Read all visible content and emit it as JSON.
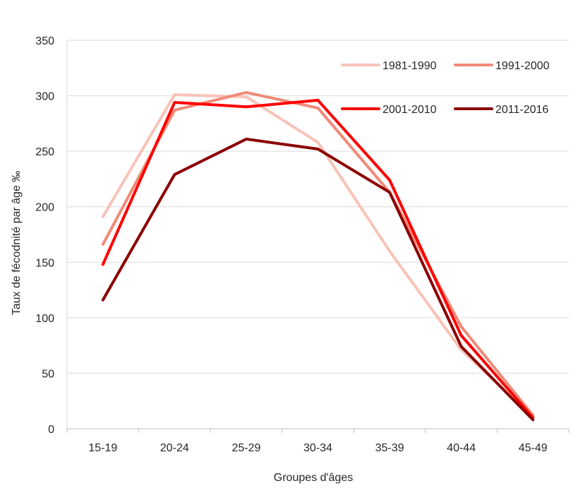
{
  "chart_data": {
    "type": "line",
    "title": "",
    "xlabel": "Groupes d'âges",
    "ylabel": "Taux de fécodnité par âge ‰",
    "categories": [
      "15-19",
      "20-24",
      "25-29",
      "30-34",
      "35-39",
      "40-44",
      "45-49"
    ],
    "ylim": [
      0,
      350
    ],
    "yticks": [
      0,
      50,
      100,
      150,
      200,
      250,
      300,
      350
    ],
    "grid": true,
    "legend_position": "top-right",
    "series": [
      {
        "name": "1981-1990",
        "color": "#f8c3b8",
        "values": [
          191,
          301,
          299,
          258,
          160,
          71,
          11
        ]
      },
      {
        "name": "1991-2000",
        "color": "#f08a78",
        "values": [
          166,
          287,
          303,
          289,
          213,
          92,
          12
        ]
      },
      {
        "name": "2001-2010",
        "color": "#ff0000",
        "values": [
          148,
          294,
          290,
          296,
          224,
          84,
          10
        ]
      },
      {
        "name": "2011-2016",
        "color": "#8b0000",
        "values": [
          116,
          229,
          261,
          252,
          213,
          74,
          8
        ]
      }
    ]
  }
}
